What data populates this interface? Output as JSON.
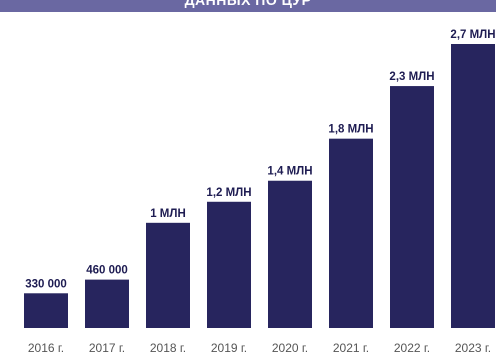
{
  "header": {
    "title": "ДАННЫХ ПО ЦУР"
  },
  "colors": {
    "bar": "#27255e",
    "header": "#6a68a2",
    "value_text": "#1e1c52",
    "tick_text": "#555555"
  },
  "chart_data": {
    "type": "bar",
    "title": "",
    "xlabel": "",
    "ylabel": "",
    "categories": [
      "2016 г.",
      "2017 г.",
      "2018 г.",
      "2019 г.",
      "2020 г.",
      "2021 г.",
      "2022 г.",
      "2023 г."
    ],
    "values": [
      330000,
      460000,
      1000000,
      1200000,
      1400000,
      1800000,
      2300000,
      2700000
    ],
    "value_labels": [
      "330 000",
      "460 000",
      "1 МЛН",
      "1,2 МЛН",
      "1,4 МЛН",
      "1,8 МЛН",
      "2,3 МЛН",
      "2,7 МЛН"
    ],
    "ylim": [
      0,
      2700000
    ],
    "grid": false,
    "legend": "none"
  }
}
